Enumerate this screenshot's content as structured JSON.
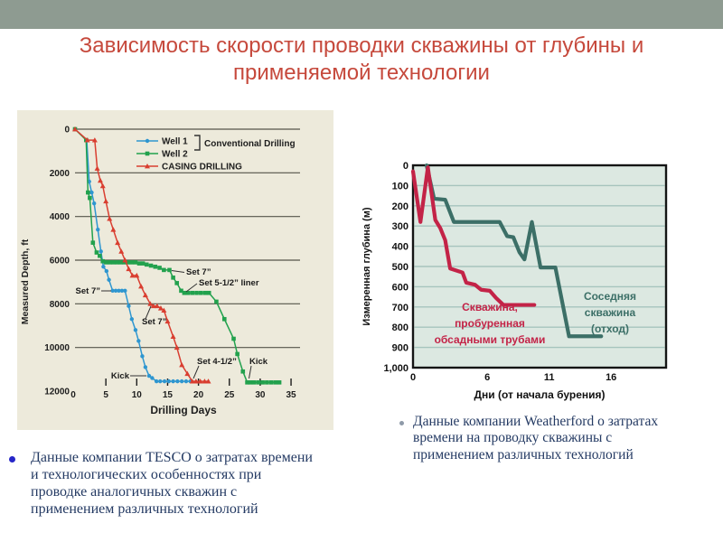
{
  "slide": {
    "title": "Зависимость скорости проводки скважины от глубины и применяемой технологии",
    "bullets": [
      "Данные компании TESCO о затратах времени и технологических особенностях при проводке аналогичных скважин с применением различных технологий",
      "Данные компании Weatherford о затратах времени на проводку скважины с применением различных технологий"
    ],
    "accent_color": "#C6493C",
    "band_color": "#8E9B91",
    "bullet_text_color": "#243A63"
  },
  "chart_data": [
    {
      "type": "line",
      "title": "",
      "xlabel": "Drilling Days",
      "ylabel": "Measured Depth, ft",
      "xlim": [
        0,
        35
      ],
      "ylim": [
        12000,
        0
      ],
      "xticks": [
        0,
        5,
        10,
        15,
        20,
        25,
        30,
        35
      ],
      "yticks": [
        0,
        2000,
        4000,
        6000,
        8000,
        10000,
        12000
      ],
      "grid": true,
      "legend_position": "top-center",
      "colors": {
        "bg": "#EDEADB",
        "grid": "#55544A",
        "text": "#1D1D1D",
        "annotation": "#1A1A1A"
      },
      "legend": {
        "entries": [
          {
            "label": "Well 1",
            "color": "#2E96D0",
            "marker": "circle"
          },
          {
            "label": "Well 2",
            "color": "#22A14D",
            "marker": "square"
          },
          {
            "label": "CASING DRILLING",
            "color": "#D93E30",
            "marker": "triangle"
          }
        ],
        "group_label": "Conventional Drilling",
        "group_of": [
          "Well 1",
          "Well 2"
        ]
      },
      "series": [
        {
          "name": "Well 1",
          "color": "#2E96D0",
          "marker": "circle",
          "points": [
            [
              0,
              0
            ],
            [
              1.9,
              500
            ],
            [
              2.3,
              2400
            ],
            [
              2.7,
              2900
            ],
            [
              3.1,
              3400
            ],
            [
              3.7,
              4600
            ],
            [
              4.2,
              5600
            ],
            [
              4.6,
              6300
            ],
            [
              5.1,
              6500
            ],
            [
              5.5,
              6900
            ],
            [
              6.1,
              7400
            ],
            [
              6.6,
              7400
            ],
            [
              7.1,
              7400
            ],
            [
              7.6,
              7400
            ],
            [
              8.1,
              7400
            ],
            [
              8.7,
              8100
            ],
            [
              9.2,
              8700
            ],
            [
              9.8,
              9200
            ],
            [
              10.3,
              9700
            ],
            [
              10.9,
              10400
            ],
            [
              11.4,
              10900
            ],
            [
              12.0,
              11300
            ],
            [
              12.5,
              11400
            ],
            [
              13.2,
              11550
            ],
            [
              13.8,
              11550
            ],
            [
              14.5,
              11550
            ],
            [
              15.2,
              11550
            ],
            [
              15.9,
              11550
            ],
            [
              16.6,
              11550
            ],
            [
              17.3,
              11550
            ],
            [
              18.0,
              11550
            ],
            [
              18.7,
              11550
            ]
          ]
        },
        {
          "name": "Well 2",
          "color": "#22A14D",
          "marker": "square",
          "points": [
            [
              0,
              0
            ],
            [
              1.8,
              500
            ],
            [
              2.1,
              2900
            ],
            [
              2.4,
              3150
            ],
            [
              2.9,
              5200
            ],
            [
              3.5,
              5650
            ],
            [
              4.0,
              5800
            ],
            [
              4.5,
              6050
            ],
            [
              5.0,
              6100
            ],
            [
              5.6,
              6100
            ],
            [
              6.2,
              6100
            ],
            [
              6.8,
              6100
            ],
            [
              7.4,
              6100
            ],
            [
              8.0,
              6100
            ],
            [
              8.6,
              6100
            ],
            [
              9.2,
              6100
            ],
            [
              9.8,
              6100
            ],
            [
              10.4,
              6150
            ],
            [
              11.0,
              6150
            ],
            [
              11.6,
              6200
            ],
            [
              12.3,
              6250
            ],
            [
              13.0,
              6300
            ],
            [
              13.7,
              6350
            ],
            [
              14.4,
              6450
            ],
            [
              15.3,
              6450
            ],
            [
              15.9,
              6800
            ],
            [
              16.5,
              7050
            ],
            [
              17.2,
              7400
            ],
            [
              17.7,
              7500
            ],
            [
              18.3,
              7500
            ],
            [
              19.0,
              7500
            ],
            [
              19.7,
              7500
            ],
            [
              20.4,
              7500
            ],
            [
              21.1,
              7500
            ],
            [
              21.7,
              7500
            ],
            [
              22.9,
              7900
            ],
            [
              24.2,
              8700
            ],
            [
              25.7,
              9600
            ],
            [
              26.3,
              10300
            ],
            [
              27.2,
              11100
            ],
            [
              27.9,
              11600
            ],
            [
              28.4,
              11600
            ],
            [
              29.0,
              11600
            ],
            [
              29.7,
              11600
            ],
            [
              30.4,
              11600
            ],
            [
              31.1,
              11600
            ],
            [
              31.8,
              11600
            ],
            [
              32.5,
              11600
            ],
            [
              33.1,
              11600
            ]
          ]
        },
        {
          "name": "CASING DRILLING",
          "color": "#D93E30",
          "marker": "triangle",
          "points": [
            [
              0,
              0
            ],
            [
              2.0,
              500
            ],
            [
              3.2,
              500
            ],
            [
              3.6,
              1800
            ],
            [
              4.1,
              2350
            ],
            [
              4.5,
              2600
            ],
            [
              5.0,
              3300
            ],
            [
              5.6,
              4100
            ],
            [
              6.2,
              4600
            ],
            [
              6.9,
              5200
            ],
            [
              7.5,
              5600
            ],
            [
              8.1,
              6000
            ],
            [
              8.7,
              6400
            ],
            [
              9.3,
              6700
            ],
            [
              10.0,
              6700
            ],
            [
              10.7,
              7200
            ],
            [
              11.4,
              7600
            ],
            [
              12.2,
              8000
            ],
            [
              12.7,
              8100
            ],
            [
              13.3,
              8100
            ],
            [
              13.9,
              8200
            ],
            [
              14.4,
              8300
            ],
            [
              15.0,
              8800
            ],
            [
              15.9,
              9500
            ],
            [
              16.5,
              10000
            ],
            [
              17.3,
              10800
            ],
            [
              18.2,
              11200
            ],
            [
              19.0,
              11550
            ],
            [
              19.6,
              11550
            ],
            [
              20.3,
              11550
            ],
            [
              21.0,
              11550
            ],
            [
              21.6,
              11550
            ]
          ]
        }
      ],
      "annotations": [
        {
          "label": "Set 7”",
          "tx": 187,
          "ty": 182,
          "anchor": "start",
          "leader": [
            [
              171,
              177.5
            ],
            [
              185,
              179.5
            ]
          ]
        },
        {
          "label": "Set 5-1/2” liner",
          "tx": 201,
          "ty": 194,
          "anchor": "start",
          "leader": [
            [
              187,
              201
            ],
            [
              199,
              192
            ]
          ]
        },
        {
          "label": "Set 7”",
          "tx": 92,
          "ty": 203,
          "anchor": "end",
          "leader": [
            [
              93,
              200
            ],
            [
              104,
              200
            ]
          ]
        },
        {
          "label": "Set 7”",
          "tx": 138,
          "ty": 237,
          "anchor": "start",
          "leader": [
            [
              148,
              217
            ],
            [
              142,
              231
            ]
          ]
        },
        {
          "label": "Kick",
          "tx": 124,
          "ty": 297,
          "anchor": "end",
          "leader": [
            [
              125,
              294
            ],
            [
              143,
              294
            ]
          ]
        },
        {
          "label": "Set 4-1/2”",
          "tx": 199,
          "ty": 281,
          "anchor": "start",
          "leader": [
            [
              201,
              283
            ],
            [
              195,
              297
            ]
          ]
        },
        {
          "label": "Kick",
          "tx": 257,
          "ty": 281,
          "anchor": "start",
          "leader": [
            [
              259,
              283
            ],
            [
              256.5,
              297
            ]
          ]
        }
      ]
    },
    {
      "type": "line",
      "title": "",
      "xlabel": "Дни (от начала бурения)",
      "ylabel": "Измеренная глубина (м)",
      "xlim": [
        0,
        20
      ],
      "ylim": [
        1000,
        0
      ],
      "xticks": [
        0,
        6,
        11,
        16
      ],
      "ytick_labels": [
        "0",
        "100",
        "200",
        "300",
        "400",
        "500",
        "600",
        "700",
        "800",
        "900",
        "1,000"
      ],
      "grid": true,
      "legend_position": "in-plot-text",
      "colors": {
        "plot_bg": "#DCE8E1",
        "grid": "#A6C4BD",
        "border": "#141414",
        "text": "#111111"
      },
      "series": [
        {
          "name": "Скважина, пробуренная обсадными трубами",
          "color": "#C32347",
          "points": [
            [
              0,
              30
            ],
            [
              0.6,
              280
            ],
            [
              1.2,
              10
            ],
            [
              1.8,
              270
            ],
            [
              2.2,
              310
            ],
            [
              2.6,
              370
            ],
            [
              3.0,
              510
            ],
            [
              4.0,
              530
            ],
            [
              4.3,
              580
            ],
            [
              5.0,
              590
            ],
            [
              5.5,
              615
            ],
            [
              6.2,
              620
            ],
            [
              6.7,
              655
            ],
            [
              7.3,
              690
            ],
            [
              9.8,
              690
            ]
          ],
          "annotation": {
            "lines": [
              "Скважина,",
              "пробуренная",
              "обсадными трубами"
            ],
            "x": 152,
            "y": 204,
            "dy": 18
          }
        },
        {
          "name": "Соседняя скважина (отход)",
          "color": "#3C6F67",
          "points": [
            [
              1.1,
              0
            ],
            [
              1.7,
              165
            ],
            [
              2.6,
              170
            ],
            [
              3.3,
              280
            ],
            [
              7.0,
              280
            ],
            [
              7.6,
              350
            ],
            [
              8.1,
              355
            ],
            [
              8.6,
              430
            ],
            [
              9.0,
              465
            ],
            [
              9.6,
              280
            ],
            [
              10.3,
              505
            ],
            [
              11.5,
              505
            ],
            [
              12.6,
              845
            ],
            [
              15.2,
              845
            ]
          ],
          "annotation": {
            "lines": [
              "Соседняя",
              "скважина",
              "(отход)"
            ],
            "x": 285,
            "y": 192,
            "dy": 18
          }
        }
      ]
    }
  ]
}
